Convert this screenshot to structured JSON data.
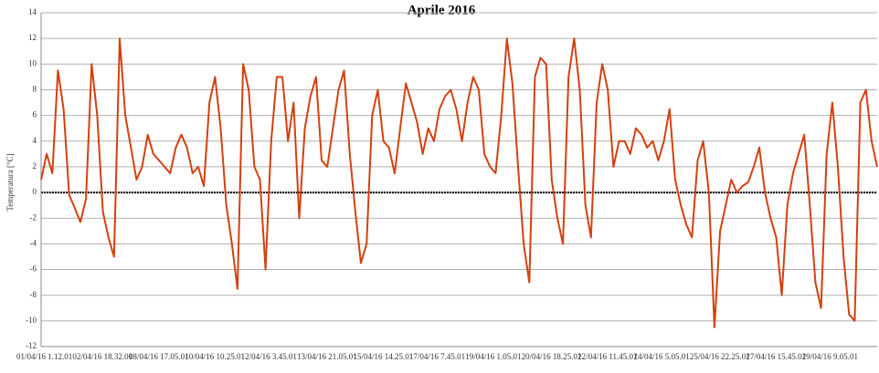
{
  "chart_data": {
    "type": "line",
    "title": "Aprile 2016",
    "y_label": "Temperatura [°C]",
    "categories": [
      "01/04/16 1.12.01",
      null,
      null,
      null,
      null,
      null,
      null,
      null,
      null,
      null,
      "02/04/16 18.32.01",
      null,
      null,
      null,
      null,
      null,
      null,
      null,
      null,
      null,
      "08/04/16 17.05.01",
      null,
      null,
      null,
      null,
      null,
      null,
      null,
      null,
      null,
      "10/04/16 10.25.01",
      null,
      null,
      null,
      null,
      null,
      null,
      null,
      null,
      null,
      "12/04/16 3.45.01",
      null,
      null,
      null,
      null,
      null,
      null,
      null,
      null,
      null,
      "13/04/16 21.05.01",
      null,
      null,
      null,
      null,
      null,
      null,
      null,
      null,
      null,
      "15/04/16 14.25.01",
      null,
      null,
      null,
      null,
      null,
      null,
      null,
      null,
      null,
      "17/04/16 7.45.01",
      null,
      null,
      null,
      null,
      null,
      null,
      null,
      null,
      null,
      "19/04/16 1.05.01",
      null,
      null,
      null,
      null,
      null,
      null,
      null,
      null,
      null,
      "20/04/16 18.25.01",
      null,
      null,
      null,
      null,
      null,
      null,
      null,
      null,
      null,
      "22/04/16 11.45.01",
      null,
      null,
      null,
      null,
      null,
      null,
      null,
      null,
      null,
      "24/04/16 5.05.01",
      null,
      null,
      null,
      null,
      null,
      null,
      null,
      null,
      null,
      "25/04/16 22.25.01",
      null,
      null,
      null,
      null,
      null,
      null,
      null,
      null,
      null,
      "27/04/16 15.45.01",
      null,
      null,
      null,
      null,
      null,
      null,
      null,
      null,
      null,
      "29/04/16 9.05.01",
      null,
      null,
      null,
      null,
      null,
      null,
      null,
      null,
      null
    ],
    "series": [
      {
        "color": "#d2410f",
        "values": [
          1,
          3,
          1.5,
          9.5,
          6.5,
          -0.2,
          -1.2,
          -2.3,
          -0.5,
          10,
          6,
          -1.5,
          -3.5,
          -5,
          12,
          6,
          3.5,
          1,
          2,
          4.5,
          3,
          2.5,
          2,
          1.5,
          3.5,
          4.5,
          3.5,
          1.5,
          2,
          0.5,
          7,
          9,
          5,
          -1,
          -4,
          -7.5,
          10,
          8,
          2,
          1,
          -6,
          4,
          9,
          9,
          4,
          7,
          -2,
          5,
          7.5,
          9,
          2.5,
          2,
          5,
          8,
          9.5,
          3,
          -1.5,
          -5.5,
          -4,
          6,
          8,
          4,
          3.5,
          1.5,
          5,
          8.5,
          7,
          5.5,
          3,
          5,
          4,
          6.5,
          7.5,
          8,
          6.5,
          4,
          7,
          9,
          8,
          3,
          2,
          1.5,
          6,
          12,
          8.5,
          2,
          -4,
          -7,
          9,
          10.5,
          10,
          1,
          -2,
          -4,
          9,
          12,
          8,
          -1,
          -3.5,
          7,
          10,
          8,
          2,
          4,
          4,
          3,
          5,
          4.5,
          3.5,
          4,
          2.5,
          4,
          6.5,
          1,
          -1,
          -2.5,
          -3.5,
          2.5,
          4,
          0,
          -10.5,
          -3,
          -1,
          1,
          0,
          0.5,
          0.8,
          2,
          3.5,
          0,
          -2,
          -3.5,
          -8,
          -1,
          1.5,
          3,
          4.5,
          -1,
          -7,
          -9,
          3,
          7,
          2,
          -5,
          -9.5,
          -10,
          7,
          8,
          4,
          2
        ]
      }
    ],
    "ylim": [
      -12,
      14
    ],
    "yticks": [
      -12,
      -10,
      -8,
      -6,
      -4,
      -2,
      0,
      2,
      4,
      6,
      8,
      10,
      12,
      14
    ],
    "grid": true,
    "zero_line": true
  }
}
